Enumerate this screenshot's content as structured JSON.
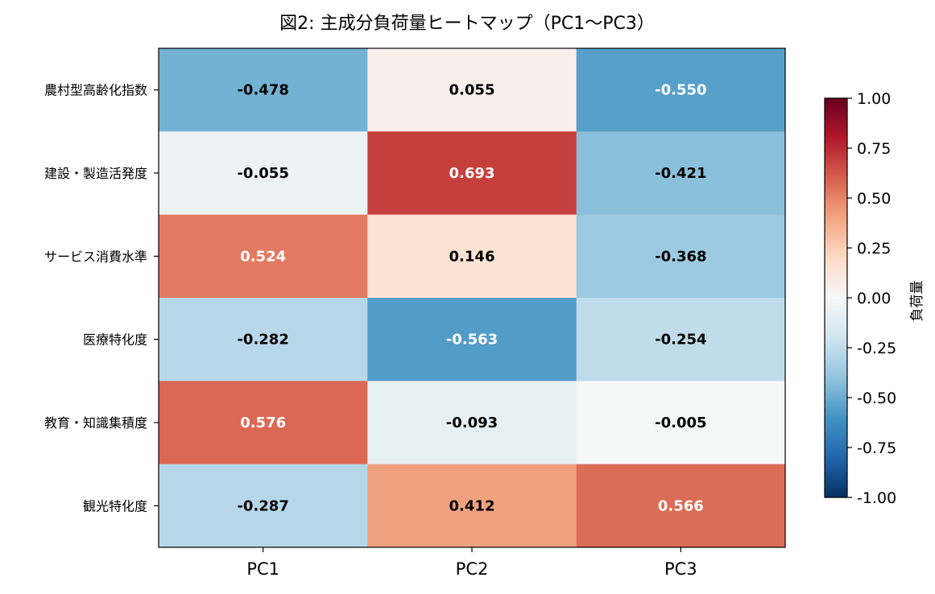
{
  "chart_data": {
    "type": "heatmap",
    "title": "図2: 主成分負荷量ヒートマップ（PC1〜PC3）",
    "columns": [
      "PC1",
      "PC2",
      "PC3"
    ],
    "rows": [
      "農村型高齢化指数",
      "建設・製造活発度",
      "サービス消費水準",
      "医療特化度",
      "教育・知識集積度",
      "観光特化度"
    ],
    "values": [
      [
        -0.478,
        0.055,
        -0.55
      ],
      [
        -0.055,
        0.693,
        -0.421
      ],
      [
        0.524,
        0.146,
        -0.368
      ],
      [
        -0.282,
        -0.563,
        -0.254
      ],
      [
        0.576,
        -0.093,
        -0.005
      ],
      [
        -0.287,
        0.412,
        0.566
      ]
    ],
    "value_labels": [
      [
        "-0.478",
        "0.055",
        "-0.550"
      ],
      [
        "-0.055",
        "0.693",
        "-0.421"
      ],
      [
        "0.524",
        "0.146",
        "-0.368"
      ],
      [
        "-0.282",
        "-0.563",
        "-0.254"
      ],
      [
        "0.576",
        "-0.093",
        "-0.005"
      ],
      [
        "-0.287",
        "0.412",
        "0.566"
      ]
    ],
    "colormap": "RdBu_r",
    "vmin": -1.0,
    "vmax": 1.0,
    "colorbar": {
      "label": "負荷量",
      "ticks": [
        1.0,
        0.75,
        0.5,
        0.25,
        0.0,
        -0.25,
        -0.5,
        -0.75,
        -1.0
      ],
      "tick_labels": [
        "1.00",
        "0.75",
        "0.50",
        "0.25",
        "0.00",
        "-0.25",
        "-0.50",
        "-0.75",
        "-1.00"
      ]
    },
    "grid": false
  }
}
